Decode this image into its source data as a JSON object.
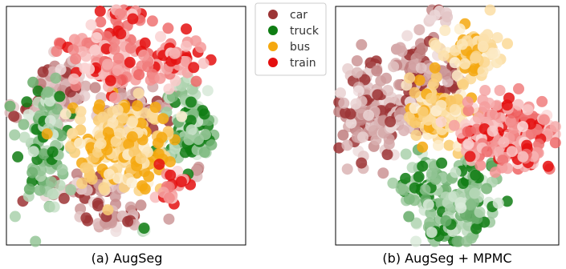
{
  "figure": {
    "legend": [
      {
        "label": "car",
        "color": "#9c3435"
      },
      {
        "label": "truck",
        "color": "#0f7d13"
      },
      {
        "label": "bus",
        "color": "#f5a80f"
      },
      {
        "label": "train",
        "color": "#e40f0f"
      }
    ],
    "captions": [
      "(a) AugSeg",
      "(b) AugSeg + MPMC"
    ]
  },
  "chart_data": [
    {
      "type": "scatter",
      "title": "(a) AugSeg",
      "xlabel": "",
      "ylabel": "",
      "xlim": [
        0,
        100
      ],
      "ylim": [
        0,
        100
      ],
      "grid": false,
      "legend_position": "outside-right",
      "series": [
        {
          "name": "car",
          "color": "#9c3435",
          "clusters": [
            {
              "center": [
                23,
                66
              ],
              "spread": [
                5,
                6
              ],
              "count": 80
            },
            {
              "center": [
                15,
                56
              ],
              "spread": [
                5,
                3
              ],
              "count": 35
            },
            {
              "center": [
                54,
                57
              ],
              "spread": [
                8,
                4
              ],
              "count": 60
            },
            {
              "center": [
                34,
                23
              ],
              "spread": [
                8,
                3
              ],
              "count": 45
            },
            {
              "center": [
                45,
                12
              ],
              "spread": [
                7,
                3
              ],
              "count": 40
            },
            {
              "center": [
                78,
                30
              ],
              "spread": [
                2,
                2
              ],
              "count": 6
            },
            {
              "center": [
                2,
                56
              ],
              "spread": [
                1.5,
                1.5
              ],
              "count": 4
            }
          ]
        },
        {
          "name": "truck",
          "color": "#0f7d13",
          "clusters": [
            {
              "center": [
                15,
                45
              ],
              "spread": [
                5,
                13
              ],
              "count": 110
            },
            {
              "center": [
                76,
                53
              ],
              "spread": [
                5,
                8
              ],
              "count": 80
            },
            {
              "center": [
                77,
                43
              ],
              "spread": [
                6,
                3
              ],
              "count": 35
            },
            {
              "center": [
                58,
                6
              ],
              "spread": [
                1.5,
                1.5
              ],
              "count": 4
            }
          ]
        },
        {
          "name": "bus",
          "color": "#f5a80f",
          "clusters": [
            {
              "center": [
                47,
                43
              ],
              "spread": [
                10,
                9
              ],
              "count": 200
            },
            {
              "center": [
                58,
                29
              ],
              "spread": [
                4,
                4
              ],
              "count": 20
            }
          ]
        },
        {
          "name": "train",
          "color": "#e40f0f",
          "clusters": [
            {
              "center": [
                48,
                96
              ],
              "spread": [
                5,
                2
              ],
              "count": 25
            },
            {
              "center": [
                40,
                84
              ],
              "spread": [
                8,
                3
              ],
              "count": 60
            },
            {
              "center": [
                44,
                72
              ],
              "spread": [
                6,
                4
              ],
              "count": 55
            },
            {
              "center": [
                70,
                76
              ],
              "spread": [
                6,
                5
              ],
              "count": 60
            },
            {
              "center": [
                69,
                25
              ],
              "spread": [
                3,
                4
              ],
              "count": 25
            },
            {
              "center": [
                58,
                80
              ],
              "spread": [
                2,
                2
              ],
              "count": 6
            }
          ]
        }
      ]
    },
    {
      "type": "scatter",
      "title": "(b) AugSeg + MPMC",
      "xlabel": "",
      "ylabel": "",
      "xlim": [
        0,
        100
      ],
      "ylim": [
        0,
        100
      ],
      "grid": false,
      "legend_position": "none",
      "series": [
        {
          "name": "car",
          "color": "#9c3435",
          "clusters": [
            {
              "center": [
                15,
                56
              ],
              "spread": [
                6,
                10
              ],
              "count": 130
            },
            {
              "center": [
                38,
                70
              ],
              "spread": [
                6,
                9
              ],
              "count": 90
            },
            {
              "center": [
                47,
                96
              ],
              "spread": [
                2,
                2
              ],
              "count": 10
            },
            {
              "center": [
                52,
                71
              ],
              "spread": [
                3,
                4
              ],
              "count": 25
            },
            {
              "center": [
                28,
                53
              ],
              "spread": [
                4,
                4
              ],
              "count": 30
            }
          ]
        },
        {
          "name": "truck",
          "color": "#0f7d13",
          "clusters": [
            {
              "center": [
                40,
                25
              ],
              "spread": [
                6,
                6
              ],
              "count": 70
            },
            {
              "center": [
                50,
                10
              ],
              "spread": [
                7,
                6
              ],
              "count": 70
            },
            {
              "center": [
                62,
                22
              ],
              "spread": [
                6,
                6
              ],
              "count": 60
            }
          ]
        },
        {
          "name": "bus",
          "color": "#f5a80f",
          "clusters": [
            {
              "center": [
                62,
                80
              ],
              "spread": [
                6,
                6
              ],
              "count": 80
            },
            {
              "center": [
                43,
                55
              ],
              "spread": [
                5,
                8
              ],
              "count": 70
            },
            {
              "center": [
                55,
                57
              ],
              "spread": [
                4,
                3
              ],
              "count": 25
            }
          ]
        },
        {
          "name": "train",
          "color": "#e40f0f",
          "clusters": [
            {
              "center": [
                78,
                50
              ],
              "spread": [
                10,
                6
              ],
              "count": 130
            },
            {
              "center": [
                65,
                45
              ],
              "spread": [
                5,
                4
              ],
              "count": 50
            },
            {
              "center": [
                82,
                36
              ],
              "spread": [
                6,
                3
              ],
              "count": 40
            }
          ]
        }
      ]
    }
  ]
}
